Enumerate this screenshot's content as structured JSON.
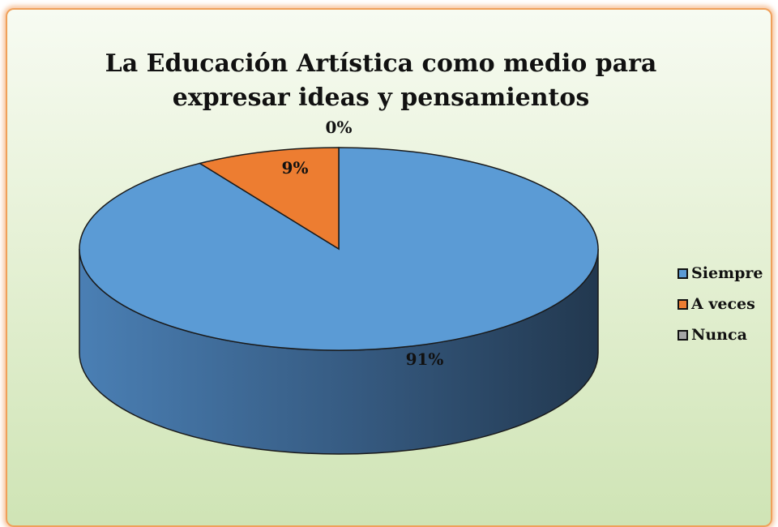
{
  "chart_data": {
    "type": "pie",
    "title": "La Educación Artística como medio para expresar ideas y pensamientos",
    "categories": [
      "Siempre",
      "A veces",
      "Nunca"
    ],
    "values": [
      91,
      9,
      0
    ],
    "labels": [
      "91%",
      "9%",
      "0%"
    ],
    "colors": [
      "#5b9bd5",
      "#ed7d31",
      "#a5a5a5"
    ],
    "legend_position": "right",
    "style": "3d"
  }
}
